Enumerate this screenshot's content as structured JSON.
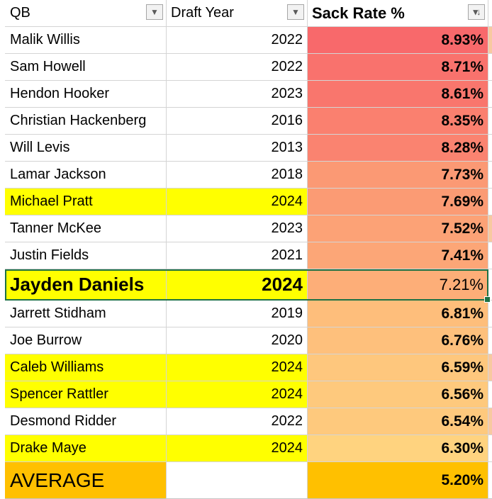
{
  "headers": {
    "qb": "QB",
    "year": "Draft Year",
    "rate": "Sack Rate %"
  },
  "colors": {
    "highlight": "#ffff00",
    "average": "#ffc000",
    "scale_high": "#f8696b",
    "scale_low": "#ffd37f",
    "active_border": "#1e7145"
  },
  "rows": [
    {
      "qb": "Malik Willis",
      "year": "2022",
      "rate": "8.93%",
      "highlight": false
    },
    {
      "qb": "Sam Howell",
      "year": "2022",
      "rate": "8.71%",
      "highlight": false
    },
    {
      "qb": "Hendon Hooker",
      "year": "2023",
      "rate": "8.61%",
      "highlight": false
    },
    {
      "qb": "Christian Hackenberg",
      "year": "2016",
      "rate": "8.35%",
      "highlight": false
    },
    {
      "qb": "Will Levis",
      "year": "2013",
      "rate": "8.28%",
      "highlight": false
    },
    {
      "qb": "Lamar Jackson",
      "year": "2018",
      "rate": "7.73%",
      "highlight": false
    },
    {
      "qb": "Michael Pratt",
      "year": "2024",
      "rate": "7.69%",
      "highlight": true
    },
    {
      "qb": "Tanner McKee",
      "year": "2023",
      "rate": "7.52%",
      "highlight": false
    },
    {
      "qb": "Justin Fields",
      "year": "2021",
      "rate": "7.41%",
      "highlight": false
    },
    {
      "qb": "Jayden Daniels",
      "year": "2024",
      "rate": "7.21%",
      "highlight": true,
      "emphasis": true
    },
    {
      "qb": "Jarrett Stidham",
      "year": "2019",
      "rate": "6.81%",
      "highlight": false
    },
    {
      "qb": "Joe Burrow",
      "year": "2020",
      "rate": "6.76%",
      "highlight": false
    },
    {
      "qb": "Caleb Williams",
      "year": "2024",
      "rate": "6.59%",
      "highlight": true
    },
    {
      "qb": "Spencer Rattler",
      "year": "2024",
      "rate": "6.56%",
      "highlight": true
    },
    {
      "qb": "Desmond Ridder",
      "year": "2022",
      "rate": "6.54%",
      "highlight": false
    },
    {
      "qb": "Drake Maye",
      "year": "2024",
      "rate": "6.30%",
      "highlight": true
    }
  ],
  "average": {
    "label": "AVERAGE",
    "year": "",
    "rate": "5.20%"
  },
  "icons": {
    "filter": "filter-dropdown-icon",
    "sort": "sort-descending-icon"
  }
}
